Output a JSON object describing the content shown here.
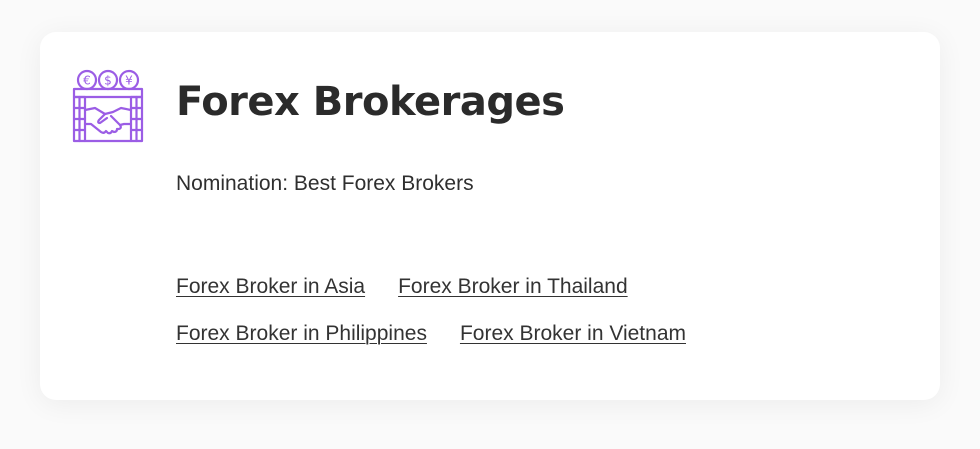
{
  "card": {
    "icon": "currency-exchange-handshake-icon",
    "accent_color": "#9b5de5",
    "title": "Forex Brokerages",
    "nomination": "Nomination: Best Forex Brokers",
    "link_rows": [
      [
        "Forex Broker in Asia",
        "Forex Broker in Thailand"
      ],
      [
        "Forex Broker in Philippines",
        "Forex Broker in Vietnam"
      ]
    ]
  }
}
